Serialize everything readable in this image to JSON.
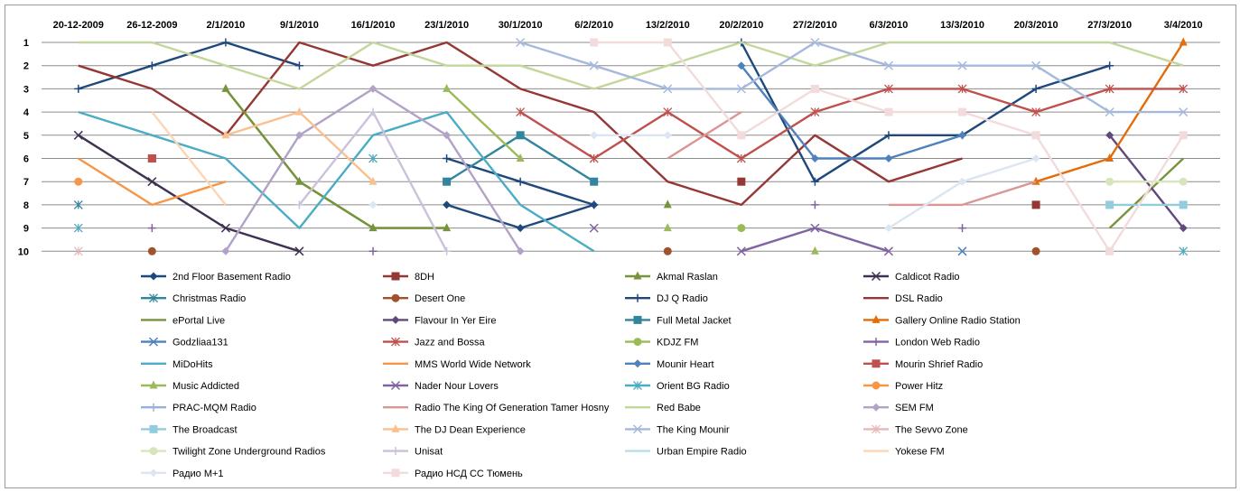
{
  "chart_data": {
    "type": "line",
    "title": "",
    "xlabel": "",
    "ylabel": "",
    "y_reversed": true,
    "ylim": [
      1,
      10
    ],
    "x_position": "top",
    "grid": "horizontal",
    "legend_position": "bottom",
    "categories": [
      "20-12-2009",
      "26-12-2009",
      "2/1/2010",
      "9/1/2010",
      "16/1/2010",
      "23/1/2010",
      "30/1/2010",
      "6/2/2010",
      "13/2/2010",
      "20/2/2010",
      "27/2/2010",
      "6/3/2010",
      "13/3/2010",
      "20/3/2010",
      "27/3/2010",
      "3/4/2010"
    ],
    "yticks": [
      "1",
      "2",
      "3",
      "4",
      "5",
      "6",
      "7",
      "8",
      "9",
      "10"
    ],
    "series": [
      {
        "name": "2nd Floor Basement Radio",
        "color": "#1f497d",
        "marker": "diamond",
        "values": [
          null,
          null,
          null,
          null,
          null,
          8,
          9,
          8,
          null,
          null,
          null,
          null,
          null,
          null,
          null,
          null
        ]
      },
      {
        "name": "8DH",
        "color": "#953735",
        "marker": "square",
        "values": [
          null,
          6,
          null,
          null,
          null,
          null,
          null,
          null,
          null,
          7,
          null,
          null,
          null,
          8,
          null,
          null
        ]
      },
      {
        "name": "Akmal Raslan",
        "color": "#77933c",
        "marker": "triangle",
        "values": [
          null,
          null,
          3,
          7,
          9,
          9,
          null,
          null,
          8,
          null,
          null,
          null,
          null,
          null,
          null,
          null
        ]
      },
      {
        "name": "Caldicot Radio",
        "color": "#403151",
        "marker": "x",
        "values": [
          5,
          7,
          9,
          10,
          null,
          null,
          null,
          null,
          null,
          null,
          null,
          null,
          null,
          null,
          null,
          null
        ]
      },
      {
        "name": "Christmas Radio",
        "color": "#31859c",
        "marker": "star",
        "values": [
          8,
          null,
          null,
          null,
          null,
          null,
          null,
          null,
          null,
          null,
          null,
          null,
          null,
          null,
          null,
          null
        ]
      },
      {
        "name": "Desert One",
        "color": "#a0522d",
        "marker": "circle",
        "values": [
          null,
          10,
          null,
          null,
          null,
          null,
          null,
          null,
          10,
          null,
          null,
          null,
          null,
          10,
          null,
          null
        ]
      },
      {
        "name": "DJ Q Radio",
        "color": "#1f497d",
        "marker": "plus",
        "values": [
          3,
          2,
          1,
          2,
          null,
          6,
          7,
          8,
          null,
          1,
          7,
          5,
          5,
          3,
          2,
          null
        ]
      },
      {
        "name": "DSL Radio",
        "color": "#953735",
        "marker": "none",
        "values": [
          2,
          3,
          5,
          1,
          2,
          1,
          3,
          4,
          7,
          8,
          5,
          7,
          6,
          null,
          null,
          null
        ]
      },
      {
        "name": "ePortal Live",
        "color": "#77933c",
        "marker": "none",
        "values": [
          null,
          null,
          3,
          7,
          9,
          9,
          null,
          null,
          8,
          null,
          null,
          null,
          null,
          null,
          9,
          6
        ]
      },
      {
        "name": "Flavour In Yer Eire",
        "color": "#604a7b",
        "marker": "diamond",
        "values": [
          null,
          null,
          null,
          null,
          null,
          null,
          null,
          null,
          null,
          null,
          null,
          null,
          null,
          null,
          5,
          9
        ]
      },
      {
        "name": "Full Metal Jacket",
        "color": "#31859c",
        "marker": "square",
        "values": [
          null,
          null,
          null,
          null,
          null,
          7,
          5,
          7,
          null,
          null,
          null,
          null,
          null,
          null,
          null,
          null
        ]
      },
      {
        "name": "Gallery Online Radio Station",
        "color": "#e46c0a",
        "marker": "triangle",
        "values": [
          null,
          null,
          null,
          null,
          null,
          null,
          null,
          null,
          null,
          null,
          null,
          null,
          null,
          7,
          6,
          1
        ]
      },
      {
        "name": "Godzliaa131",
        "color": "#4f81bd",
        "marker": "x",
        "values": [
          null,
          null,
          null,
          null,
          null,
          null,
          null,
          null,
          null,
          null,
          null,
          null,
          10,
          null,
          null,
          null
        ]
      },
      {
        "name": "Jazz and Bossa",
        "color": "#c0504d",
        "marker": "star",
        "values": [
          null,
          null,
          null,
          null,
          null,
          null,
          4,
          6,
          4,
          6,
          4,
          3,
          3,
          4,
          3,
          3
        ]
      },
      {
        "name": "KDJZ FM",
        "color": "#9bbb59",
        "marker": "circle",
        "values": [
          null,
          null,
          null,
          null,
          null,
          null,
          null,
          null,
          null,
          9,
          null,
          null,
          null,
          null,
          null,
          null
        ]
      },
      {
        "name": "London Web Radio",
        "color": "#8064a2",
        "marker": "plus",
        "values": [
          null,
          9,
          null,
          null,
          10,
          null,
          null,
          null,
          null,
          null,
          8,
          null,
          9,
          null,
          null,
          null
        ]
      },
      {
        "name": "MiDoHits",
        "color": "#4bacc6",
        "marker": "none",
        "values": [
          4,
          5,
          6,
          9,
          5,
          4,
          8,
          10,
          null,
          null,
          null,
          null,
          null,
          null,
          null,
          null
        ]
      },
      {
        "name": "MMS World Wide Network",
        "color": "#f79646",
        "marker": "none",
        "values": [
          6,
          8,
          7,
          null,
          null,
          null,
          null,
          null,
          null,
          null,
          null,
          null,
          null,
          null,
          null,
          null
        ]
      },
      {
        "name": "Mounir Heart",
        "color": "#4f81bd",
        "marker": "diamond",
        "values": [
          null,
          null,
          null,
          null,
          null,
          null,
          null,
          null,
          null,
          2,
          6,
          6,
          5,
          null,
          null,
          null
        ]
      },
      {
        "name": "Mourin Shrief Radio",
        "color": "#c0504d",
        "marker": "square",
        "values": [
          null,
          6,
          null,
          null,
          null,
          null,
          null,
          null,
          null,
          null,
          null,
          null,
          null,
          null,
          null,
          null
        ]
      },
      {
        "name": "Music Addicted",
        "color": "#9bbb59",
        "marker": "triangle",
        "values": [
          null,
          null,
          null,
          null,
          null,
          3,
          6,
          null,
          9,
          null,
          10,
          null,
          null,
          null,
          null,
          null
        ]
      },
      {
        "name": "Nader Nour Lovers",
        "color": "#8064a2",
        "marker": "x",
        "values": [
          null,
          null,
          null,
          null,
          null,
          null,
          null,
          9,
          null,
          10,
          9,
          10,
          null,
          null,
          null,
          null
        ]
      },
      {
        "name": "Orient BG Radio",
        "color": "#4bacc6",
        "marker": "star",
        "values": [
          9,
          null,
          null,
          null,
          6,
          null,
          null,
          null,
          null,
          null,
          null,
          null,
          null,
          null,
          null,
          10
        ]
      },
      {
        "name": "Power Hitz",
        "color": "#f79646",
        "marker": "circle",
        "values": [
          7,
          null,
          null,
          null,
          null,
          null,
          null,
          null,
          null,
          null,
          null,
          null,
          null,
          null,
          null,
          null
        ]
      },
      {
        "name": "PRAC-MQM Radio",
        "color": "#95b3d7",
        "marker": "plus",
        "values": [
          null,
          null,
          null,
          null,
          null,
          null,
          null,
          null,
          null,
          null,
          null,
          null,
          null,
          null,
          null,
          null
        ]
      },
      {
        "name": "Radio The King Of Generation Tamer Hosny",
        "color": "#d99694",
        "marker": "none",
        "values": [
          null,
          null,
          null,
          null,
          null,
          null,
          null,
          null,
          6,
          4,
          null,
          8,
          8,
          7,
          null,
          null
        ]
      },
      {
        "name": "Red Babe",
        "color": "#c3d69b",
        "marker": "none",
        "values": [
          1,
          1,
          2,
          3,
          1,
          2,
          2,
          3,
          2,
          1,
          2,
          1,
          1,
          1,
          1,
          2
        ]
      },
      {
        "name": "SEM FM",
        "color": "#b3a2c7",
        "marker": "diamond",
        "values": [
          null,
          null,
          10,
          5,
          3,
          5,
          10,
          null,
          null,
          null,
          null,
          null,
          null,
          null,
          null,
          null
        ]
      },
      {
        "name": "The Broadcast",
        "color": "#93cddd",
        "marker": "square",
        "values": [
          null,
          null,
          null,
          null,
          null,
          null,
          null,
          null,
          null,
          null,
          null,
          null,
          null,
          null,
          8,
          8
        ]
      },
      {
        "name": "The DJ Dean Experience",
        "color": "#fac090",
        "marker": "triangle",
        "values": [
          null,
          null,
          5,
          4,
          7,
          null,
          null,
          null,
          null,
          null,
          null,
          null,
          null,
          null,
          null,
          null
        ]
      },
      {
        "name": "The King Mounir",
        "color": "#a6b9dd",
        "marker": "x",
        "values": [
          null,
          null,
          null,
          null,
          null,
          null,
          1,
          2,
          3,
          3,
          1,
          2,
          2,
          2,
          4,
          4
        ]
      },
      {
        "name": "The Sevvo Zone",
        "color": "#e6b9b8",
        "marker": "star",
        "values": [
          10,
          null,
          null,
          null,
          null,
          null,
          null,
          null,
          null,
          null,
          null,
          null,
          null,
          null,
          null,
          null
        ]
      },
      {
        "name": "Twilight Zone Underground Radios",
        "color": "#d7e4bc",
        "marker": "circle",
        "values": [
          null,
          null,
          null,
          null,
          null,
          null,
          null,
          null,
          null,
          null,
          null,
          null,
          null,
          null,
          7,
          7
        ]
      },
      {
        "name": "Unisat",
        "color": "#ccc1da",
        "marker": "plus",
        "values": [
          null,
          null,
          null,
          8,
          4,
          10,
          null,
          null,
          null,
          null,
          null,
          null,
          null,
          null,
          null,
          null
        ]
      },
      {
        "name": "Urban Empire Radio",
        "color": "#b7dee8",
        "marker": "none",
        "values": [
          null,
          null,
          null,
          null,
          null,
          null,
          null,
          null,
          null,
          null,
          null,
          null,
          null,
          null,
          null,
          null
        ]
      },
      {
        "name": "Yokese FM",
        "color": "#fcd5b5",
        "marker": "none",
        "values": [
          null,
          4,
          8,
          null,
          null,
          null,
          null,
          null,
          null,
          null,
          null,
          null,
          null,
          null,
          null,
          null
        ]
      },
      {
        "name": "Радио М+1",
        "color": "#dce6f2",
        "marker": "diamond",
        "values": [
          null,
          null,
          null,
          null,
          8,
          null,
          null,
          5,
          5,
          null,
          null,
          9,
          7,
          6,
          null,
          null
        ]
      },
      {
        "name": "Радио НСД СС Тюмень",
        "color": "#f2dcdb",
        "marker": "square",
        "values": [
          null,
          null,
          null,
          null,
          null,
          null,
          null,
          1,
          1,
          5,
          3,
          4,
          4,
          5,
          10,
          5
        ]
      }
    ]
  }
}
